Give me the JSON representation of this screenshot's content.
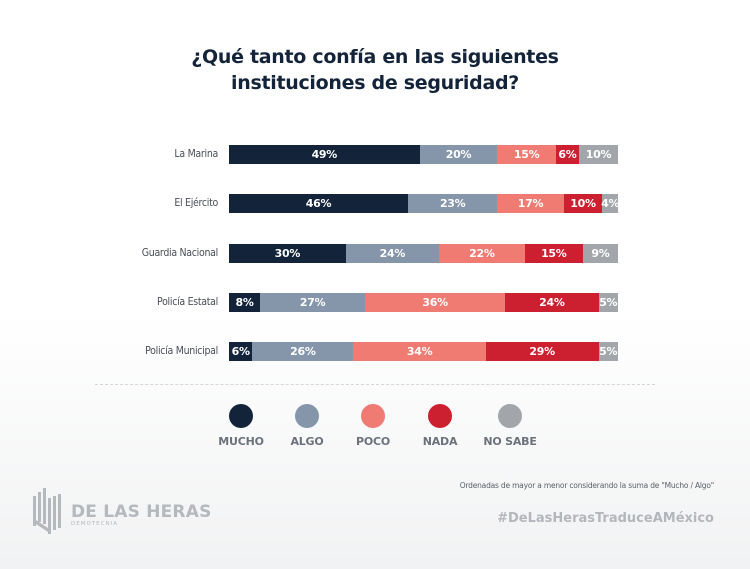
{
  "title_line1": "¿Qué tanto confía en las siguientes",
  "title_line2": "instituciones de seguridad?",
  "colors": {
    "mucho": "#13243a",
    "algo": "#8595aa",
    "poco": "#ef7b72",
    "nada": "#cc1f2f",
    "no_sabe": "#a2a6ab"
  },
  "chart_data": {
    "type": "bar",
    "orientation": "horizontal-stacked-100",
    "title": "¿Qué tanto confía en las siguientes instituciones de seguridad?",
    "categories": [
      "La Marina",
      "El Ejército",
      "Guardia Nacional",
      "Policía Estatal",
      "Policía Municipal"
    ],
    "series": [
      {
        "name": "MUCHO",
        "key": "mucho",
        "values": [
          49,
          46,
          30,
          8,
          6
        ]
      },
      {
        "name": "ALGO",
        "key": "algo",
        "values": [
          20,
          23,
          24,
          27,
          26
        ]
      },
      {
        "name": "POCO",
        "key": "poco",
        "values": [
          15,
          17,
          22,
          36,
          34
        ]
      },
      {
        "name": "NADA",
        "key": "nada",
        "values": [
          6,
          10,
          15,
          24,
          29
        ]
      },
      {
        "name": "NO SABE",
        "key": "no_sabe",
        "values": [
          10,
          4,
          9,
          5,
          5
        ]
      }
    ],
    "unit": "%",
    "xlim": [
      0,
      100
    ],
    "legend_position": "bottom"
  },
  "legend": [
    "MUCHO",
    "ALGO",
    "POCO",
    "NADA",
    "NO SABE"
  ],
  "note": "Ordenadas de mayor a menor considerando la suma de \"Mucho / Algo\"",
  "hashtag": "#DeLasHerasTraduceAMéxico",
  "logo": {
    "main": "DE LAS HERAS",
    "sub": "DEMOTECNIA"
  }
}
